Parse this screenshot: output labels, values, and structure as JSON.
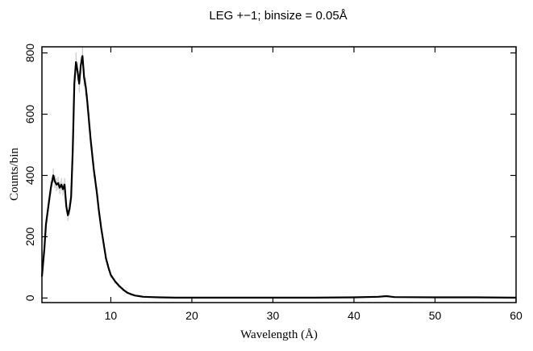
{
  "chart_data": {
    "type": "line",
    "title": "LEG +−1; binsize = 0.05Å",
    "xlabel": "Wavelength (Å)",
    "ylabel": "Counts/bin",
    "xlim": [
      1.5,
      60
    ],
    "ylim": [
      -15,
      820
    ],
    "x_ticks": [
      10,
      20,
      30,
      40,
      50,
      60
    ],
    "x_tick_labels": [
      "10",
      "20",
      "30",
      "40",
      "50",
      "60"
    ],
    "y_ticks": [
      0,
      200,
      400,
      600,
      800
    ],
    "y_tick_labels": [
      "0",
      "200",
      "400",
      "600",
      "800"
    ],
    "grid": false,
    "error_bars": true,
    "series": [
      {
        "x": [
          1.5,
          1.8,
          2.0,
          2.3,
          2.6,
          2.9,
          3.1,
          3.3,
          3.5,
          3.7,
          3.9,
          4.1,
          4.3,
          4.5,
          4.7,
          4.9,
          5.1,
          5.3,
          5.5,
          5.7,
          5.9,
          6.1,
          6.3,
          6.5,
          6.7,
          6.9,
          7.1,
          7.3,
          7.5,
          7.7,
          7.9,
          8.1,
          8.3,
          8.5,
          8.8,
          9.1,
          9.4,
          9.7,
          10.0,
          10.5,
          11.0,
          11.5,
          12.0,
          12.5,
          13.0,
          13.5,
          14.0,
          15.0,
          16.0,
          18.0,
          20.0,
          25.0,
          30.0,
          35.0,
          40.0,
          43.0,
          44.0,
          45.0,
          50.0,
          55.0,
          60.0
        ],
        "values": [
          70,
          160,
          240,
          300,
          360,
          400,
          380,
          370,
          375,
          360,
          370,
          355,
          370,
          300,
          270,
          290,
          330,
          480,
          700,
          770,
          740,
          700,
          760,
          790,
          720,
          690,
          640,
          580,
          520,
          470,
          420,
          380,
          340,
          290,
          230,
          180,
          130,
          100,
          75,
          55,
          40,
          28,
          18,
          12,
          8,
          6,
          4,
          3,
          2,
          1,
          1,
          1,
          1,
          1,
          2,
          4,
          6,
          3,
          2,
          2,
          1
        ],
        "errors": [
          10,
          14,
          17,
          19,
          21,
          22,
          21,
          21,
          21,
          21,
          21,
          21,
          21,
          19,
          18,
          19,
          20,
          24,
          30,
          31,
          30,
          29,
          30,
          31,
          29,
          29,
          28,
          26,
          25,
          24,
          22,
          21,
          20,
          18,
          16,
          14,
          12,
          11,
          9,
          8,
          7,
          6,
          5,
          4,
          3,
          3,
          2,
          2,
          2,
          1,
          1,
          1,
          1,
          1,
          1,
          2,
          2,
          2,
          1,
          1,
          1
        ]
      }
    ]
  }
}
